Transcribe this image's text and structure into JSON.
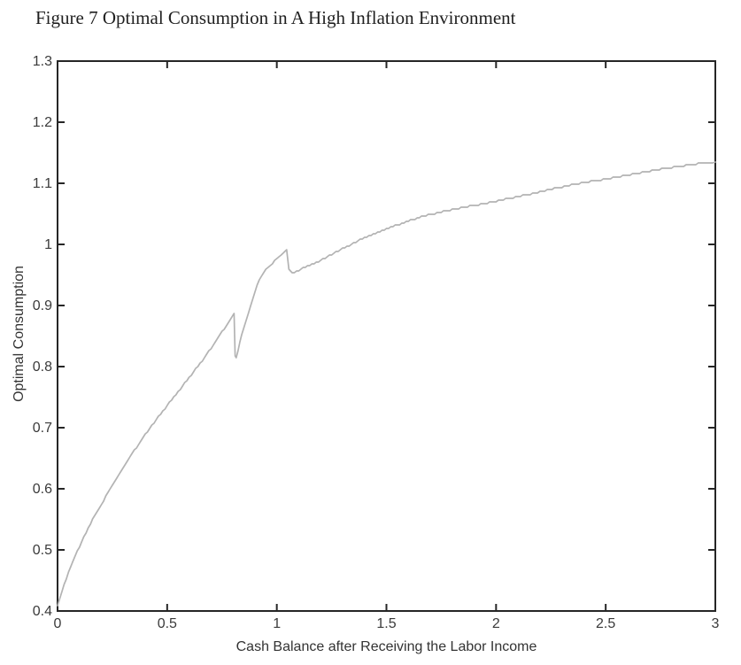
{
  "figure": {
    "title": "Figure 7 Optimal Consumption in A High Inflation Environment"
  },
  "chart_data": {
    "type": "line",
    "title": "Figure 7 Optimal Consumption in A High Inflation Environment",
    "xlabel": "Cash Balance after Receiving the Labor Income",
    "ylabel": "Optimal Consumption",
    "xlim": [
      0,
      3
    ],
    "ylim": [
      0.4,
      1.3
    ],
    "xticks": [
      0,
      0.5,
      1,
      1.5,
      2,
      2.5,
      3
    ],
    "xtick_labels": [
      "0",
      "0.5",
      "1",
      "1.5",
      "2",
      "2.5",
      "3"
    ],
    "yticks": [
      0.4,
      0.5,
      0.6,
      0.7,
      0.8,
      0.9,
      1.0,
      1.1,
      1.2,
      1.3
    ],
    "ytick_labels": [
      "0.4",
      "0.5",
      "0.6",
      "0.7",
      "0.8",
      "0.9",
      "1",
      "1.1",
      "1.2",
      "1.3"
    ],
    "grid": false,
    "legend": null,
    "line_color": "#b3b3b3",
    "axis_color": "#262626",
    "series": [
      {
        "name": "optimal-consumption",
        "points": [
          [
            0.0,
            0.41
          ],
          [
            0.03,
            0.444
          ],
          [
            0.06,
            0.472
          ],
          [
            0.09,
            0.498
          ],
          [
            0.12,
            0.521
          ],
          [
            0.15,
            0.543
          ],
          [
            0.18,
            0.562
          ],
          [
            0.21,
            0.581
          ],
          [
            0.24,
            0.6
          ],
          [
            0.27,
            0.618
          ],
          [
            0.3,
            0.635
          ],
          [
            0.33,
            0.652
          ],
          [
            0.36,
            0.668
          ],
          [
            0.39,
            0.684
          ],
          [
            0.42,
            0.699
          ],
          [
            0.45,
            0.713
          ],
          [
            0.48,
            0.727
          ],
          [
            0.51,
            0.741
          ],
          [
            0.54,
            0.755
          ],
          [
            0.57,
            0.768
          ],
          [
            0.6,
            0.782
          ],
          [
            0.63,
            0.796
          ],
          [
            0.66,
            0.81
          ],
          [
            0.69,
            0.825
          ],
          [
            0.72,
            0.841
          ],
          [
            0.75,
            0.857
          ],
          [
            0.78,
            0.872
          ],
          [
            0.8,
            0.885
          ],
          [
            0.805,
            0.887
          ],
          [
            0.81,
            0.817
          ],
          [
            0.815,
            0.815
          ],
          [
            0.84,
            0.852
          ],
          [
            0.87,
            0.888
          ],
          [
            0.9,
            0.922
          ],
          [
            0.92,
            0.942
          ],
          [
            0.94,
            0.955
          ],
          [
            0.96,
            0.963
          ],
          [
            0.98,
            0.969
          ],
          [
            1.0,
            0.976
          ],
          [
            1.02,
            0.983
          ],
          [
            1.045,
            0.99
          ],
          [
            1.055,
            0.958
          ],
          [
            1.07,
            0.954
          ],
          [
            1.09,
            0.956
          ],
          [
            1.12,
            0.961
          ],
          [
            1.15,
            0.966
          ],
          [
            1.2,
            0.974
          ],
          [
            1.25,
            0.983
          ],
          [
            1.3,
            0.993
          ],
          [
            1.35,
            1.002
          ],
          [
            1.4,
            1.011
          ],
          [
            1.45,
            1.018
          ],
          [
            1.5,
            1.026
          ],
          [
            1.55,
            1.032
          ],
          [
            1.6,
            1.038
          ],
          [
            1.65,
            1.044
          ],
          [
            1.7,
            1.049
          ],
          [
            1.75,
            1.053
          ],
          [
            1.8,
            1.057
          ],
          [
            1.85,
            1.061
          ],
          [
            1.9,
            1.064
          ],
          [
            1.95,
            1.067
          ],
          [
            2.0,
            1.071
          ],
          [
            2.1,
            1.078
          ],
          [
            2.2,
            1.086
          ],
          [
            2.3,
            1.094
          ],
          [
            2.4,
            1.101
          ],
          [
            2.5,
            1.107
          ],
          [
            2.6,
            1.113
          ],
          [
            2.7,
            1.12
          ],
          [
            2.8,
            1.126
          ],
          [
            2.9,
            1.131
          ],
          [
            3.0,
            1.135
          ]
        ]
      }
    ],
    "discontinuities": [
      {
        "x": 0.81,
        "from": 0.887,
        "to": 0.815
      },
      {
        "x": 1.05,
        "from": 0.99,
        "to": 0.955
      }
    ]
  }
}
